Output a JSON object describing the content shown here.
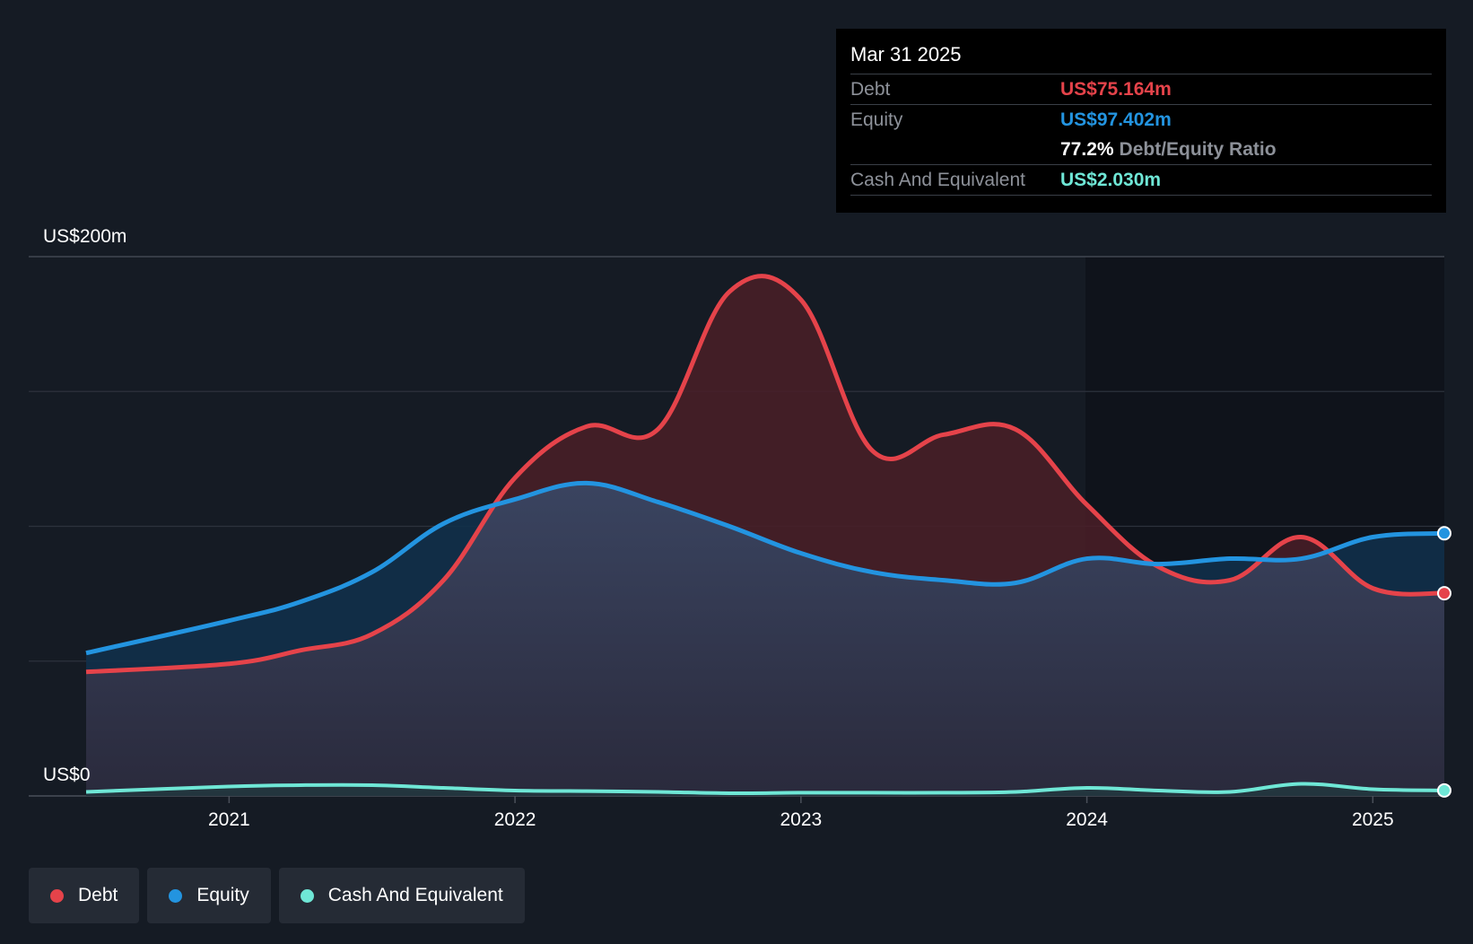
{
  "chart_data": {
    "type": "area",
    "y_top_label": "US$200m",
    "y_bottom_label": "US$0",
    "ylim": [
      0,
      200
    ],
    "x_ticks": [
      {
        "label": "2021",
        "x": 2021.0
      },
      {
        "label": "2022",
        "x": 2022.0
      },
      {
        "label": "2023",
        "x": 2023.0
      },
      {
        "label": "2024",
        "x": 2024.0
      },
      {
        "label": "2025",
        "x": 2025.0
      }
    ],
    "xlim": [
      2020.2,
      2025.25
    ],
    "series": [
      {
        "name": "Debt",
        "color": "#e5434a",
        "points": [
          [
            2020.5,
            46
          ],
          [
            2021.0,
            49
          ],
          [
            2021.25,
            54
          ],
          [
            2021.5,
            60
          ],
          [
            2021.75,
            80
          ],
          [
            2022.0,
            118
          ],
          [
            2022.25,
            137
          ],
          [
            2022.5,
            136
          ],
          [
            2022.75,
            187
          ],
          [
            2023.0,
            184
          ],
          [
            2023.25,
            128
          ],
          [
            2023.5,
            134
          ],
          [
            2023.75,
            136
          ],
          [
            2024.0,
            108
          ],
          [
            2024.25,
            85
          ],
          [
            2024.5,
            80
          ],
          [
            2024.75,
            96
          ],
          [
            2025.0,
            77
          ],
          [
            2025.25,
            75.164
          ]
        ]
      },
      {
        "name": "Equity",
        "color": "#2394e0",
        "points": [
          [
            2020.5,
            53
          ],
          [
            2021.0,
            65
          ],
          [
            2021.25,
            72
          ],
          [
            2021.5,
            83
          ],
          [
            2021.75,
            101
          ],
          [
            2022.0,
            110
          ],
          [
            2022.25,
            116
          ],
          [
            2022.5,
            109
          ],
          [
            2022.75,
            100
          ],
          [
            2023.0,
            90
          ],
          [
            2023.25,
            83
          ],
          [
            2023.5,
            80
          ],
          [
            2023.75,
            79
          ],
          [
            2024.0,
            88
          ],
          [
            2024.25,
            86
          ],
          [
            2024.5,
            88
          ],
          [
            2024.75,
            88
          ],
          [
            2025.0,
            96
          ],
          [
            2025.25,
            97.402
          ]
        ]
      },
      {
        "name": "Cash And Equivalent",
        "color": "#6fe7d6",
        "points": [
          [
            2020.5,
            1.5
          ],
          [
            2021.0,
            3.5
          ],
          [
            2021.25,
            4
          ],
          [
            2021.5,
            4
          ],
          [
            2021.75,
            3
          ],
          [
            2022.0,
            2
          ],
          [
            2022.25,
            1.8
          ],
          [
            2022.5,
            1.5
          ],
          [
            2022.75,
            1
          ],
          [
            2023.0,
            1.2
          ],
          [
            2023.25,
            1.2
          ],
          [
            2023.5,
            1.2
          ],
          [
            2023.75,
            1.5
          ],
          [
            2024.0,
            3
          ],
          [
            2024.25,
            2
          ],
          [
            2024.5,
            1.5
          ],
          [
            2024.75,
            4.5
          ],
          [
            2025.0,
            2.5
          ],
          [
            2025.25,
            2.03
          ]
        ]
      }
    ]
  },
  "tooltip": {
    "date": "Mar 31 2025",
    "debt_label": "Debt",
    "debt_value": "US$75.164m",
    "equity_label": "Equity",
    "equity_value": "US$97.402m",
    "ratio_value": "77.2%",
    "ratio_label": "Debt/Equity Ratio",
    "cash_label": "Cash And Equivalent",
    "cash_value": "US$2.030m"
  },
  "legend": {
    "debt": "Debt",
    "equity": "Equity",
    "cash": "Cash And Equivalent"
  },
  "colors": {
    "debt": "#e5434a",
    "equity": "#2394e0",
    "cash": "#6fe7d6",
    "background": "#151b24"
  }
}
